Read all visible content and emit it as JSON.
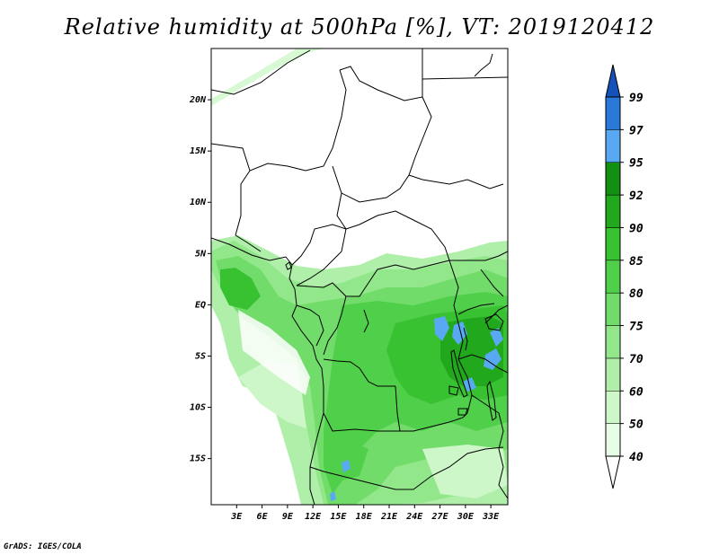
{
  "title": "Relative humidity at 500hPa [%], VT: 2019120412",
  "credit": "GrADS: IGES/COLA",
  "map": {
    "lon_range": [
      0,
      35
    ],
    "lat_range": [
      -19.5,
      25
    ],
    "lon_ticks": [
      "3E",
      "6E",
      "9E",
      "12E",
      "15E",
      "18E",
      "21E",
      "24E",
      "27E",
      "30E",
      "33E"
    ],
    "lat_ticks": [
      "20N",
      "15N",
      "10N",
      "5N",
      "EQ",
      "5S",
      "10S",
      "15S"
    ]
  },
  "colorbar": {
    "labels": [
      "40",
      "50",
      "60",
      "70",
      "75",
      "80",
      "85",
      "90",
      "92",
      "95",
      "97",
      "99"
    ],
    "colors": [
      "#ffffff",
      "#e6fde6",
      "#cdf7c8",
      "#b0efaa",
      "#92e78b",
      "#72dc6a",
      "#50d04a",
      "#38c130",
      "#22a81c",
      "#139012",
      "#59a9f2",
      "#2a79d8",
      "#1451b8"
    ]
  }
}
